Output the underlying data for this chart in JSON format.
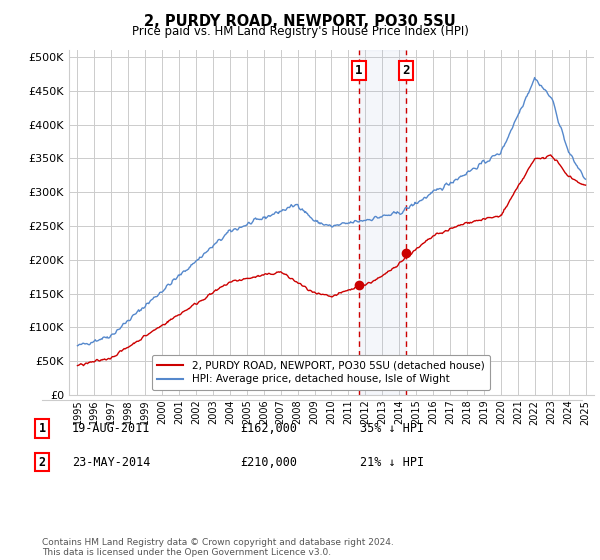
{
  "title": "2, PURDY ROAD, NEWPORT, PO30 5SU",
  "subtitle": "Price paid vs. HM Land Registry's House Price Index (HPI)",
  "sale1_date": 2011.63,
  "sale1_price": 162000,
  "sale1_label": "1",
  "sale1_text": "19-AUG-2011",
  "sale1_amount": "£162,000",
  "sale1_hpi": "35% ↓ HPI",
  "sale2_date": 2014.39,
  "sale2_price": 210000,
  "sale2_label": "2",
  "sale2_text": "23-MAY-2014",
  "sale2_amount": "£210,000",
  "sale2_hpi": "21% ↓ HPI",
  "legend1": "2, PURDY ROAD, NEWPORT, PO30 5SU (detached house)",
  "legend2": "HPI: Average price, detached house, Isle of Wight",
  "footnote": "Contains HM Land Registry data © Crown copyright and database right 2024.\nThis data is licensed under the Open Government Licence v3.0.",
  "line_color_red": "#cc0000",
  "line_color_blue": "#5588cc",
  "dot_color": "#cc0000",
  "background_color": "#ffffff",
  "grid_color": "#cccccc",
  "ylim": [
    0,
    510000
  ],
  "xlim": [
    1994.5,
    2025.5
  ],
  "yticks": [
    0,
    50000,
    100000,
    150000,
    200000,
    250000,
    300000,
    350000,
    400000,
    450000,
    500000
  ],
  "yticklabels": [
    "£0",
    "£50K",
    "£100K",
    "£150K",
    "£200K",
    "£250K",
    "£300K",
    "£350K",
    "£400K",
    "£450K",
    "£500K"
  ]
}
